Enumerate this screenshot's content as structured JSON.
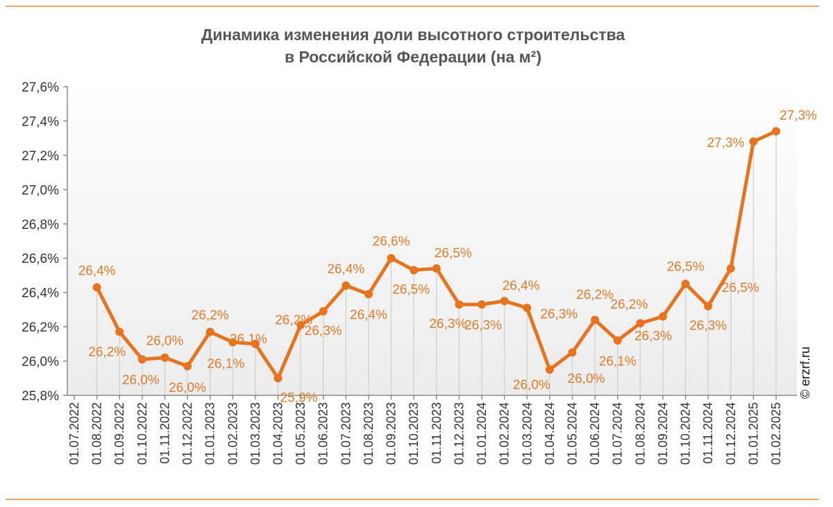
{
  "chart_data": {
    "type": "line",
    "title": "Динамика изменения доли высотного строительства в Российской Федерации (на м²)",
    "title_lines": [
      "Динамика изменения доли высотного строительства",
      "в Российской Федерации (на м²)"
    ],
    "xlabel": "",
    "ylabel": "",
    "ylim": [
      25.8,
      27.6
    ],
    "y_ticks": [
      "25,8%",
      "26,0%",
      "26,2%",
      "26,4%",
      "26,6%",
      "26,8%",
      "27,0%",
      "27,2%",
      "27,4%",
      "27,6%"
    ],
    "categories": [
      "01.07.2022",
      "01.08.2022",
      "01.09.2022",
      "01.10.2022",
      "01.11.2022",
      "01.12.2022",
      "01.01.2023",
      "01.02.2023",
      "01.03.2023",
      "01.04.2023",
      "01.05.2023",
      "01.06.2023",
      "01.07.2023",
      "01.08.2023",
      "01.09.2023",
      "01.10.2023",
      "01.11.2023",
      "01.12.2023",
      "01.01.2024",
      "01.02.2024",
      "01.03.2024",
      "01.04.2024",
      "01.05.2024",
      "01.06.2024",
      "01.07.2024",
      "01.08.2024",
      "01.09.2024",
      "01.10.2024",
      "01.11.2024",
      "01.12.2024",
      "01.01.2025",
      "01.02.2025"
    ],
    "values": [
      null,
      26.43,
      26.17,
      26.01,
      26.02,
      25.97,
      26.17,
      26.11,
      26.1,
      25.9,
      26.21,
      26.29,
      26.44,
      26.39,
      26.6,
      26.53,
      26.54,
      26.33,
      26.33,
      26.35,
      26.31,
      25.95,
      26.05,
      26.24,
      26.12,
      26.22,
      26.26,
      26.45,
      26.32,
      26.54,
      27.28,
      27.34
    ],
    "data_labels": [
      null,
      "26,4%",
      "26,2%",
      "26,0%",
      "26,0%",
      "26,0%",
      "26,2%",
      "26,1%",
      "26,1%",
      "25,9%",
      "26,2%",
      "26,3%",
      "26,4%",
      "26,4%",
      "26,6%",
      "26,5%",
      "26,5%",
      "26,3%",
      "26,3%",
      "26,4%",
      "26,3%",
      "26,0%",
      "26,0%",
      "26,2%",
      "26,1%",
      "26,2%",
      "26,3%",
      "26,5%",
      "26,3%",
      "26,5%",
      "27,3%",
      "27,3%"
    ],
    "grid": false,
    "legend": "none",
    "colors": {
      "line": "#E8731E",
      "label": "#E07B28",
      "axis": "#888888"
    }
  },
  "watermark": "© erzrf.ru"
}
